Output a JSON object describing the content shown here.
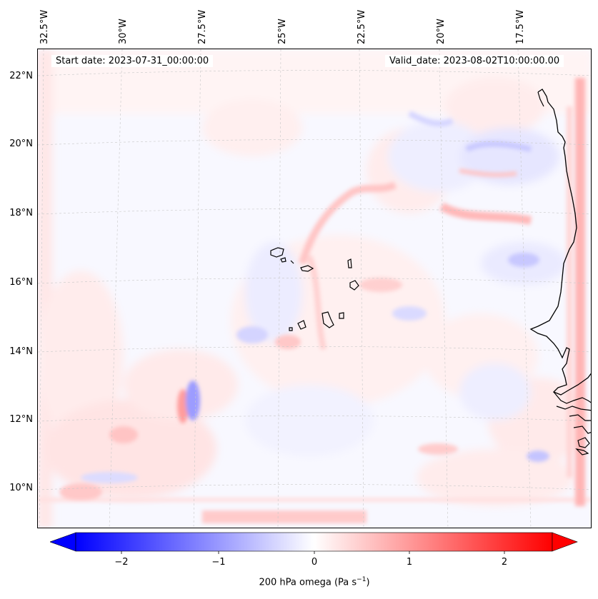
{
  "map": {
    "lon_labels": [
      "32.5°W",
      "30°W",
      "27.5°W",
      "25°W",
      "22.5°W",
      "20°W",
      "17.5°W"
    ],
    "lat_labels": [
      "22°N",
      "20°N",
      "18°N",
      "16°N",
      "14°N",
      "12°N",
      "10°N"
    ],
    "start_date": "Start date: 2023-07-31_00:00:00",
    "valid_date": "Valid_date: 2023-08-02T10:00:00.00",
    "gridlines": true,
    "coastlines": true,
    "colors": {
      "negative": "#0000ff",
      "zero": "#ffffff",
      "positive": "#ff0000",
      "coast": "#000000"
    }
  },
  "colorbar": {
    "ticks": [
      "−2",
      "−1",
      "0",
      "1",
      "2"
    ],
    "tick_values": [
      -2,
      -1,
      0,
      1,
      2
    ],
    "range": [
      -2.5,
      2.5
    ],
    "extend": "both",
    "label_prefix": "200 hPa omega (Pa s",
    "label_exp": "−1",
    "label_suffix": ")"
  }
}
